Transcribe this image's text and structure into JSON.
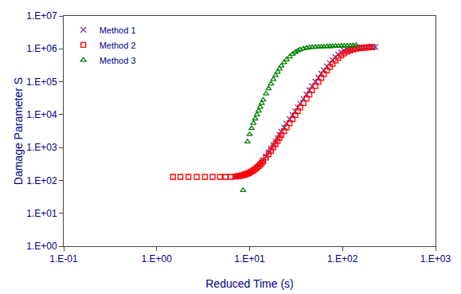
{
  "chart_data": {
    "type": "scatter",
    "xlabel": "Reduced Time (s)",
    "ylabel": "Damage Parameter S",
    "log": true,
    "grid": false,
    "legend": "upper left",
    "xlim": [
      0.1,
      1000
    ],
    "ylim": [
      1.0,
      10000000
    ],
    "xticks": [
      {
        "value": 0.1,
        "label": "1.E-01"
      },
      {
        "value": 1,
        "label": "1.E+00"
      },
      {
        "value": 10,
        "label": "1.E+01"
      },
      {
        "value": 100,
        "label": "1.E+02"
      },
      {
        "value": 1000,
        "label": "1.E+03"
      }
    ],
    "yticks": [
      {
        "value": 1,
        "label": "1.E+00"
      },
      {
        "value": 10,
        "label": "1.E+01"
      },
      {
        "value": 100,
        "label": "1.E+02"
      },
      {
        "value": 1000,
        "label": "1.E+03"
      },
      {
        "value": 10000,
        "label": "1.E+04"
      },
      {
        "value": 100000,
        "label": "1.E+05"
      },
      {
        "value": 1000000,
        "label": "1.E+06"
      },
      {
        "value": 10000000,
        "label": "1.E+07"
      }
    ],
    "series": [
      {
        "name": "Method 1",
        "color": "#7030a0",
        "marker": "x",
        "x": [
          7.0,
          7.3,
          7.6,
          8.0,
          8.3,
          8.7,
          9.0,
          9.3,
          9.7,
          10.0,
          10.5,
          11.0,
          11.5,
          12.0,
          12.5,
          13.0,
          13.5,
          14.0,
          15.0,
          16.0,
          17.0,
          18.0,
          19.0,
          20.0,
          21.0,
          22.0,
          23.5,
          25.0,
          27.0,
          29.0,
          31.0,
          33.0,
          35.0,
          38.0,
          41.0,
          44.0,
          47.0,
          51.0,
          55.0,
          59.0,
          63.0,
          68.0,
          73.0,
          78.0,
          84.0,
          90.0,
          97.0,
          104.0,
          112.0,
          121.0,
          130.0,
          140.0,
          150.0,
          160.0,
          170.0,
          180.0,
          195.0,
          210.0,
          225.0
        ],
        "values": [
          130,
          133,
          136,
          140,
          144,
          148,
          153,
          158,
          165,
          172,
          185,
          200,
          220,
          245,
          275,
          310,
          355,
          410,
          540,
          710,
          920,
          1180,
          1500,
          1900,
          2400,
          3000,
          4000,
          5300,
          7200,
          9500,
          12500,
          16500,
          21500,
          30000,
          41000,
          55000,
          73000,
          100000,
          133000,
          175000,
          225000,
          290000,
          365000,
          455000,
          560000,
          670000,
          780000,
          870000,
          940000,
          990000,
          1020000,
          1050000,
          1070000,
          1085000,
          1095000,
          1105000,
          1115000,
          1125000,
          1135000
        ]
      },
      {
        "name": "Method 2",
        "color": "#ff0000",
        "marker": "square",
        "x": [
          1.5,
          1.8,
          2.2,
          2.7,
          3.3,
          4.0,
          4.8,
          5.5,
          6.3,
          7.0,
          7.3,
          7.6,
          8.0,
          8.3,
          8.7,
          9.0,
          9.3,
          9.7,
          10.0,
          10.5,
          11.0,
          11.5,
          12.0,
          12.5,
          13.0,
          13.5,
          14.0,
          15.0,
          16.0,
          17.0,
          18.0,
          19.0,
          20.0,
          21.0,
          22.0,
          23.5,
          25.0,
          27.0,
          29.0,
          31.0,
          33.0,
          35.0,
          38.0,
          41.0,
          44.0,
          47.0,
          51.0,
          55.0,
          59.0,
          63.0,
          68.0,
          73.0,
          78.0,
          84.0,
          90.0,
          97.0,
          104.0,
          112.0,
          121.0,
          130.0,
          140.0,
          150.0,
          160.0,
          170.0,
          180.0,
          195.0,
          210.0
        ],
        "values": [
          128,
          128,
          128,
          128,
          128,
          128,
          128,
          128,
          128,
          130,
          132,
          135,
          138,
          142,
          147,
          152,
          158,
          165,
          173,
          187,
          203,
          222,
          244,
          270,
          302,
          340,
          385,
          490,
          625,
          795,
          1000,
          1260,
          1570,
          1950,
          2420,
          3150,
          4100,
          5500,
          7300,
          9600,
          12600,
          16500,
          22500,
          30500,
          41000,
          54500,
          73500,
          98000,
          130000,
          170000,
          220000,
          280000,
          350000,
          435000,
          525000,
          630000,
          725000,
          815000,
          895000,
          955000,
          1005000,
          1045000,
          1070000,
          1090000,
          1105000,
          1120000,
          1130000
        ]
      },
      {
        "name": "Method 3",
        "color": "#008000",
        "marker": "triangle-up",
        "x": [
          8.5,
          9.5,
          10.0,
          10.5,
          11.0,
          11.5,
          12.0,
          12.5,
          13.0,
          13.5,
          14.0,
          15.0,
          16.0,
          17.0,
          18.0,
          19.0,
          20.0,
          21.0,
          22.0,
          23.5,
          25.0,
          27.0,
          29.0,
          31.0,
          33.0,
          35.0,
          38.0,
          41.0,
          44.0,
          47.0,
          51.0,
          55.0,
          59.0,
          63.0,
          68.0,
          73.0,
          78.0,
          84.0,
          90.0,
          97.0,
          104.0,
          112.0,
          121.0,
          130.0,
          140.0
        ],
        "values": [
          50,
          1500,
          2500,
          3800,
          5500,
          7500,
          10000,
          13000,
          17000,
          22000,
          28000,
          43000,
          62000,
          87000,
          118000,
          155000,
          198000,
          248000,
          305000,
          385000,
          470000,
          580000,
          690000,
          790000,
          875000,
          945000,
          1010000,
          1060000,
          1095000,
          1115000,
          1130000,
          1145000,
          1155000,
          1165000,
          1175000,
          1185000,
          1195000,
          1205000,
          1215000,
          1225000,
          1235000,
          1245000,
          1255000,
          1265000,
          1275000
        ]
      }
    ]
  }
}
